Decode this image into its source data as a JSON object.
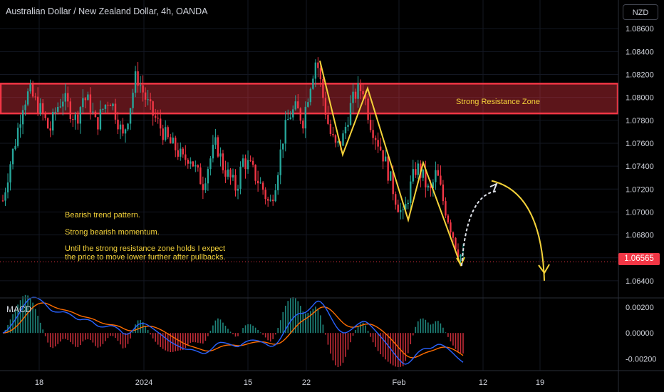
{
  "header": {
    "title": "Australian Dollar / New Zealand Dollar, 4h, OANDA",
    "currency_button": "NZD"
  },
  "annotations": {
    "zone_label": "Strong Resistance Zone",
    "notes": [
      "Bearish trend pattern.",
      "Strong bearish momentum.",
      "Until the strong resistance zone holds I expect",
      "the price to move lower further after pullbacks."
    ]
  },
  "price_panel": {
    "last_price": "1.06565"
  },
  "macd_panel": {
    "label": "MACD"
  },
  "colors": {
    "up": "#26a69a",
    "down": "#f23645",
    "zone": "#f23645",
    "annotation": "#f5d33a",
    "macd_line": "#2962ff",
    "signal_line": "#ff6d00"
  },
  "chart_data": [
    {
      "type": "candlestick",
      "title": "Australian Dollar / New Zealand Dollar, 4h, OANDA",
      "x_tick_labels": [
        "18",
        "2024",
        "15",
        "22",
        "Feb",
        "12",
        "19"
      ],
      "y_ticks": [
        1.064,
        1.066,
        1.068,
        1.07,
        1.072,
        1.074,
        1.076,
        1.078,
        1.08,
        1.082,
        1.084,
        1.086
      ],
      "y_tick_labels": [
        "1.06400",
        "1.06600",
        "1.06800",
        "1.07000",
        "1.07200",
        "1.07400",
        "1.07600",
        "1.07800",
        "1.08000",
        "1.08200",
        "1.08400",
        "1.08600"
      ],
      "ylim": [
        1.0625,
        1.0885
      ],
      "last_price": 1.06565,
      "resistance_zone": [
        1.0786,
        1.0812
      ],
      "close_path_approx": [
        [
          0,
          1.071
        ],
        [
          2,
          1.074
        ],
        [
          4,
          1.0765
        ],
        [
          6,
          1.0795
        ],
        [
          8,
          1.0805
        ],
        [
          10,
          1.0795
        ],
        [
          12,
          1.0785
        ],
        [
          14,
          1.077
        ],
        [
          16,
          1.079
        ],
        [
          18,
          1.08
        ],
        [
          20,
          1.079
        ],
        [
          22,
          1.078
        ],
        [
          24,
          1.08
        ],
        [
          26,
          1.0795
        ],
        [
          28,
          1.0775
        ],
        [
          30,
          1.079
        ],
        [
          32,
          1.08
        ],
        [
          34,
          1.0785
        ],
        [
          36,
          1.0765
        ],
        [
          38,
          1.079
        ],
        [
          40,
          1.082
        ],
        [
          42,
          1.0805
        ],
        [
          44,
          1.079
        ],
        [
          46,
          1.078
        ],
        [
          48,
          1.077
        ],
        [
          50,
          1.076
        ],
        [
          52,
          1.0755
        ],
        [
          54,
          1.0745
        ],
        [
          56,
          1.075
        ],
        [
          58,
          1.0735
        ],
        [
          60,
          1.0725
        ],
        [
          62,
          1.0745
        ],
        [
          64,
          1.076
        ],
        [
          66,
          1.074
        ],
        [
          68,
          1.073
        ],
        [
          70,
          1.072
        ],
        [
          72,
          1.0745
        ],
        [
          74,
          1.074
        ],
        [
          76,
          1.073
        ],
        [
          78,
          1.072
        ],
        [
          80,
          1.0705
        ],
        [
          82,
          1.073
        ],
        [
          84,
          1.0765
        ],
        [
          86,
          1.0785
        ],
        [
          88,
          1.079
        ],
        [
          90,
          1.078
        ],
        [
          92,
          1.081
        ],
        [
          94,
          1.0835
        ],
        [
          96,
          1.08
        ],
        [
          98,
          1.077
        ],
        [
          100,
          1.0755
        ],
        [
          102,
          1.0765
        ],
        [
          104,
          1.079
        ],
        [
          106,
          1.0805
        ],
        [
          108,
          1.0808
        ],
        [
          110,
          1.078
        ],
        [
          112,
          1.0765
        ],
        [
          114,
          1.075
        ],
        [
          116,
          1.073
        ],
        [
          118,
          1.071
        ],
        [
          120,
          1.0695
        ],
        [
          122,
          1.072
        ],
        [
          124,
          1.074
        ],
        [
          126,
          1.073
        ],
        [
          128,
          1.0715
        ],
        [
          130,
          1.0735
        ],
        [
          132,
          1.071
        ],
        [
          134,
          1.069
        ],
        [
          136,
          1.067
        ],
        [
          138,
          1.0658
        ]
      ],
      "annotation_pattern": [
        [
          0,
          1.0832
        ],
        [
          1,
          1.075
        ],
        [
          2,
          1.0808
        ],
        [
          3,
          1.0693
        ],
        [
          4,
          1.0743
        ],
        [
          5,
          1.0653
        ]
      ],
      "projection_path": [
        [
          0,
          1.0653
        ],
        [
          1,
          1.0718
        ],
        [
          2,
          1.0726
        ],
        [
          3,
          1.064
        ]
      ]
    },
    {
      "type": "line",
      "title": "MACD",
      "y_tick_labels": [
        "0.00200",
        "0.00000",
        "-0.00200"
      ],
      "y_ticks": [
        0.002,
        0.0,
        -0.002
      ],
      "ylim": [
        -0.0028,
        0.0026
      ]
    }
  ]
}
